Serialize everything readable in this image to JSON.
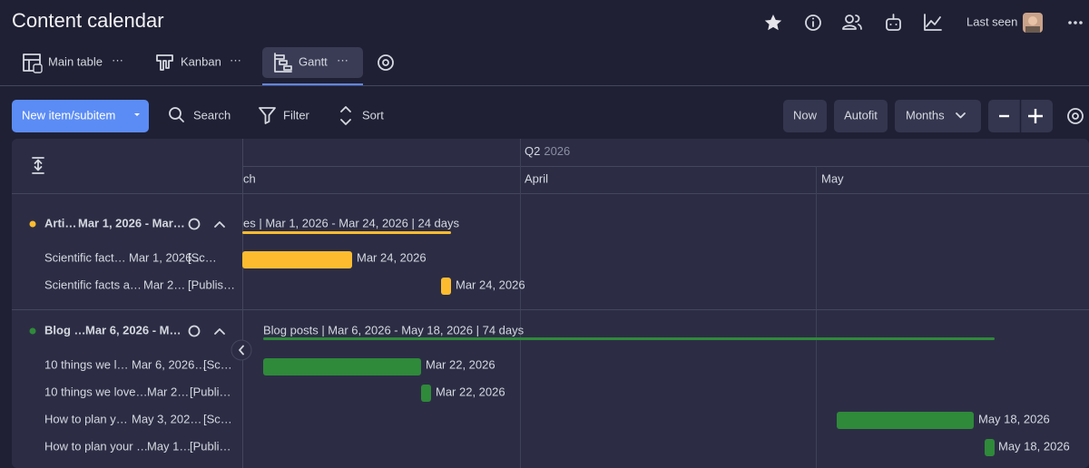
{
  "header": {
    "title": "Content calendar",
    "last_seen": "Last seen"
  },
  "tabs": [
    "Main table",
    "Kanban",
    "Gantt"
  ],
  "toolbar": {
    "new_item": "New item/subitem",
    "search": "Search",
    "filter": "Filter",
    "sort": "Sort",
    "now": "Now",
    "autofit": "Autofit",
    "scale": "Months"
  },
  "timeline": {
    "quarter": "Q2",
    "year": "2026",
    "months": [
      "ch",
      "April",
      "May"
    ]
  },
  "groups": [
    {
      "name": "Arti…",
      "dates": "Mar 1, 2026 - Mar…",
      "summary": "es | Mar 1, 2026 - Mar 24, 2026 | 24 days",
      "items": [
        {
          "name": "Scientific fact…",
          "date": "Mar 1, 2026…",
          "status": "[Sc…",
          "bar_label": "Mar 24, 2026"
        },
        {
          "name": "Scientific facts a…",
          "date": "Mar 2…",
          "status": "[Publis…",
          "bar_label": "Mar 24, 2026"
        }
      ]
    },
    {
      "name": "Blog …",
      "dates": "Mar 6, 2026 - M…",
      "summary": "Blog posts | Mar 6, 2026 - May 18, 2026 | 74 days",
      "items": [
        {
          "name": "10 things we l…",
          "date": "Mar 6, 2026…",
          "status": "[Sc…",
          "bar_label": "Mar 22, 2026"
        },
        {
          "name": "10 things we love…",
          "date": "Mar 2…",
          "status": "[Publi…",
          "bar_label": "Mar 22, 2026"
        },
        {
          "name": "How to plan y…",
          "date": "May 3, 202…",
          "status": "[Sc…",
          "bar_label": "May 18, 2026"
        },
        {
          "name": "How to plan your …",
          "date": "May 1…",
          "status": "[Publi…",
          "bar_label": "May 18, 2026"
        }
      ]
    }
  ]
}
